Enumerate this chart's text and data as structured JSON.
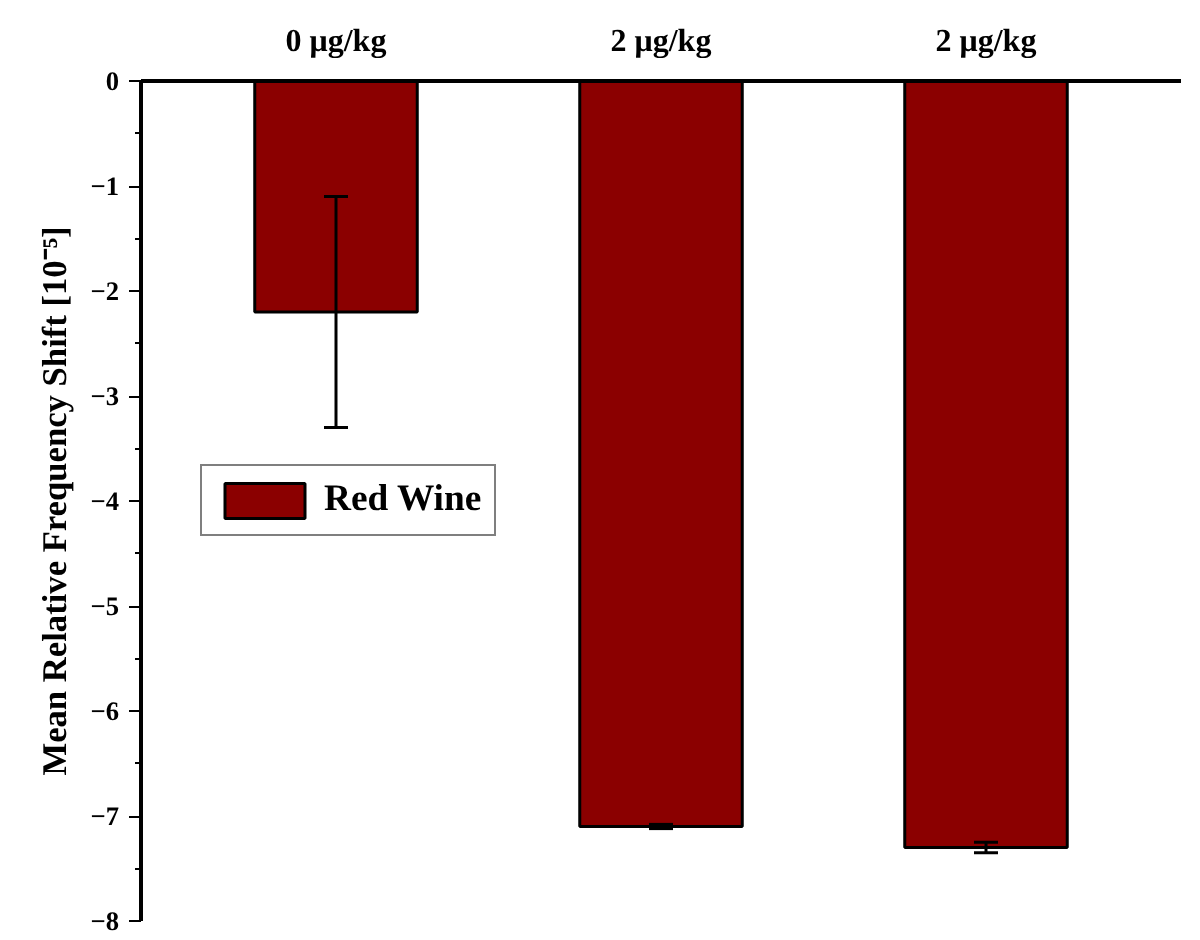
{
  "chart_data": {
    "type": "bar",
    "ylabel": "Mean Relative Frequency Shift [10⁻⁵]",
    "categories": [
      "0 μg/kg",
      "2 μg/kg",
      "2 μg/kg"
    ],
    "series": [
      {
        "name": "Red Wine",
        "color": "#8b0000",
        "values": [
          -2.2,
          -7.1,
          -7.3
        ],
        "errors": [
          1.1,
          0.02,
          0.05
        ]
      }
    ],
    "ylim": [
      -8,
      0
    ],
    "yticks": [
      0,
      -1,
      -2,
      -3,
      -4,
      -5,
      -6,
      -7,
      -8
    ],
    "legend": "left",
    "grid": false
  }
}
